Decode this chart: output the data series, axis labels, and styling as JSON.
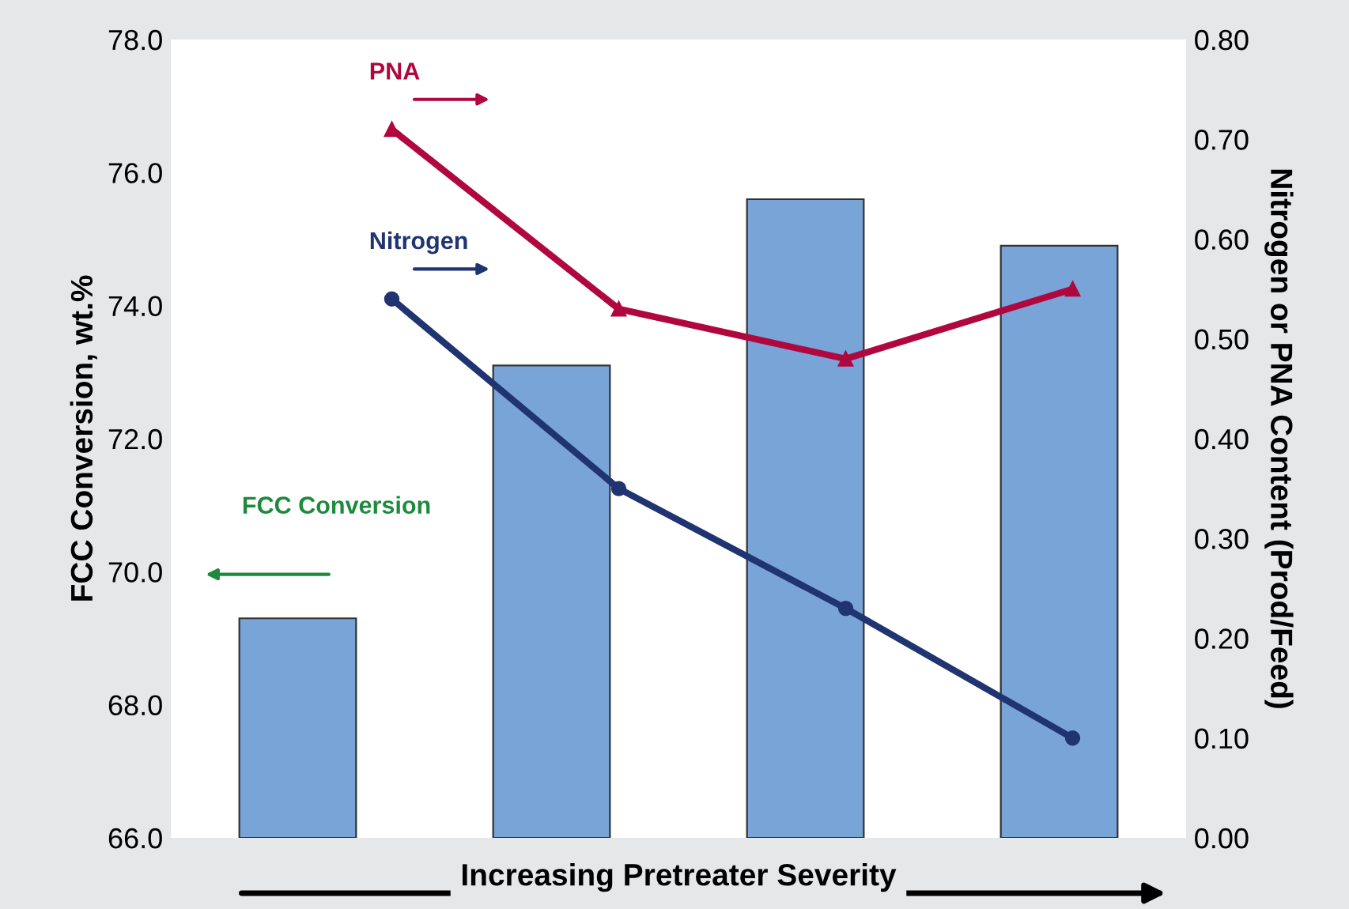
{
  "chart_data": [
    {
      "type": "bar",
      "xlabel": "Increasing Pretreater Severity",
      "ylabel": "FCC Conversion, wt.%",
      "categories": [
        null,
        null,
        null,
        null
      ],
      "series": [
        {
          "color": "#79a4d8",
          "values": [
            69.3,
            73.1,
            75.6,
            74.9
          ]
        }
      ],
      "annotations": [
        "FCC Conversion"
      ],
      "ylim": [
        66,
        78
      ],
      "yticks": [
        {
          "value": 66,
          "label": "66.0"
        },
        {
          "value": 68,
          "label": "68.0"
        },
        {
          "value": 70,
          "label": "70.0"
        },
        {
          "value": 72,
          "label": "72.0"
        },
        {
          "value": 74,
          "label": "74.0"
        },
        {
          "value": 76,
          "label": "76.0"
        },
        {
          "value": 78,
          "label": "78.0"
        }
      ],
      "grid": false,
      "legend": false
    },
    {
      "type": "line",
      "ylabel": "Nitrogen or PNA Content (Prod/Feed)",
      "categories": [
        null,
        null,
        null,
        null
      ],
      "series": [
        {
          "name": "Nitrogen",
          "color": "#1f3470",
          "marker": "circle",
          "values": [
            0.54,
            0.35,
            0.23,
            0.1
          ]
        },
        {
          "name": "PNA",
          "color": "#b0083e",
          "marker": "triangle",
          "values": [
            0.71,
            0.53,
            0.48,
            0.55
          ]
        }
      ],
      "ylim": [
        0,
        0.8
      ],
      "yticks": [
        {
          "value": 0,
          "label": "0.00"
        },
        {
          "value": 0.1,
          "label": "0.10"
        },
        {
          "value": 0.2,
          "label": "0.20"
        },
        {
          "value": 0.3,
          "label": "0.30"
        },
        {
          "value": 0.4,
          "label": "0.40"
        },
        {
          "value": 0.5,
          "label": "0.50"
        },
        {
          "value": 0.6,
          "label": "0.60"
        },
        {
          "value": 0.7,
          "label": "0.70"
        },
        {
          "value": 0.8,
          "label": "0.80"
        }
      ],
      "grid": false,
      "legend": false,
      "line_style": "solid"
    }
  ]
}
